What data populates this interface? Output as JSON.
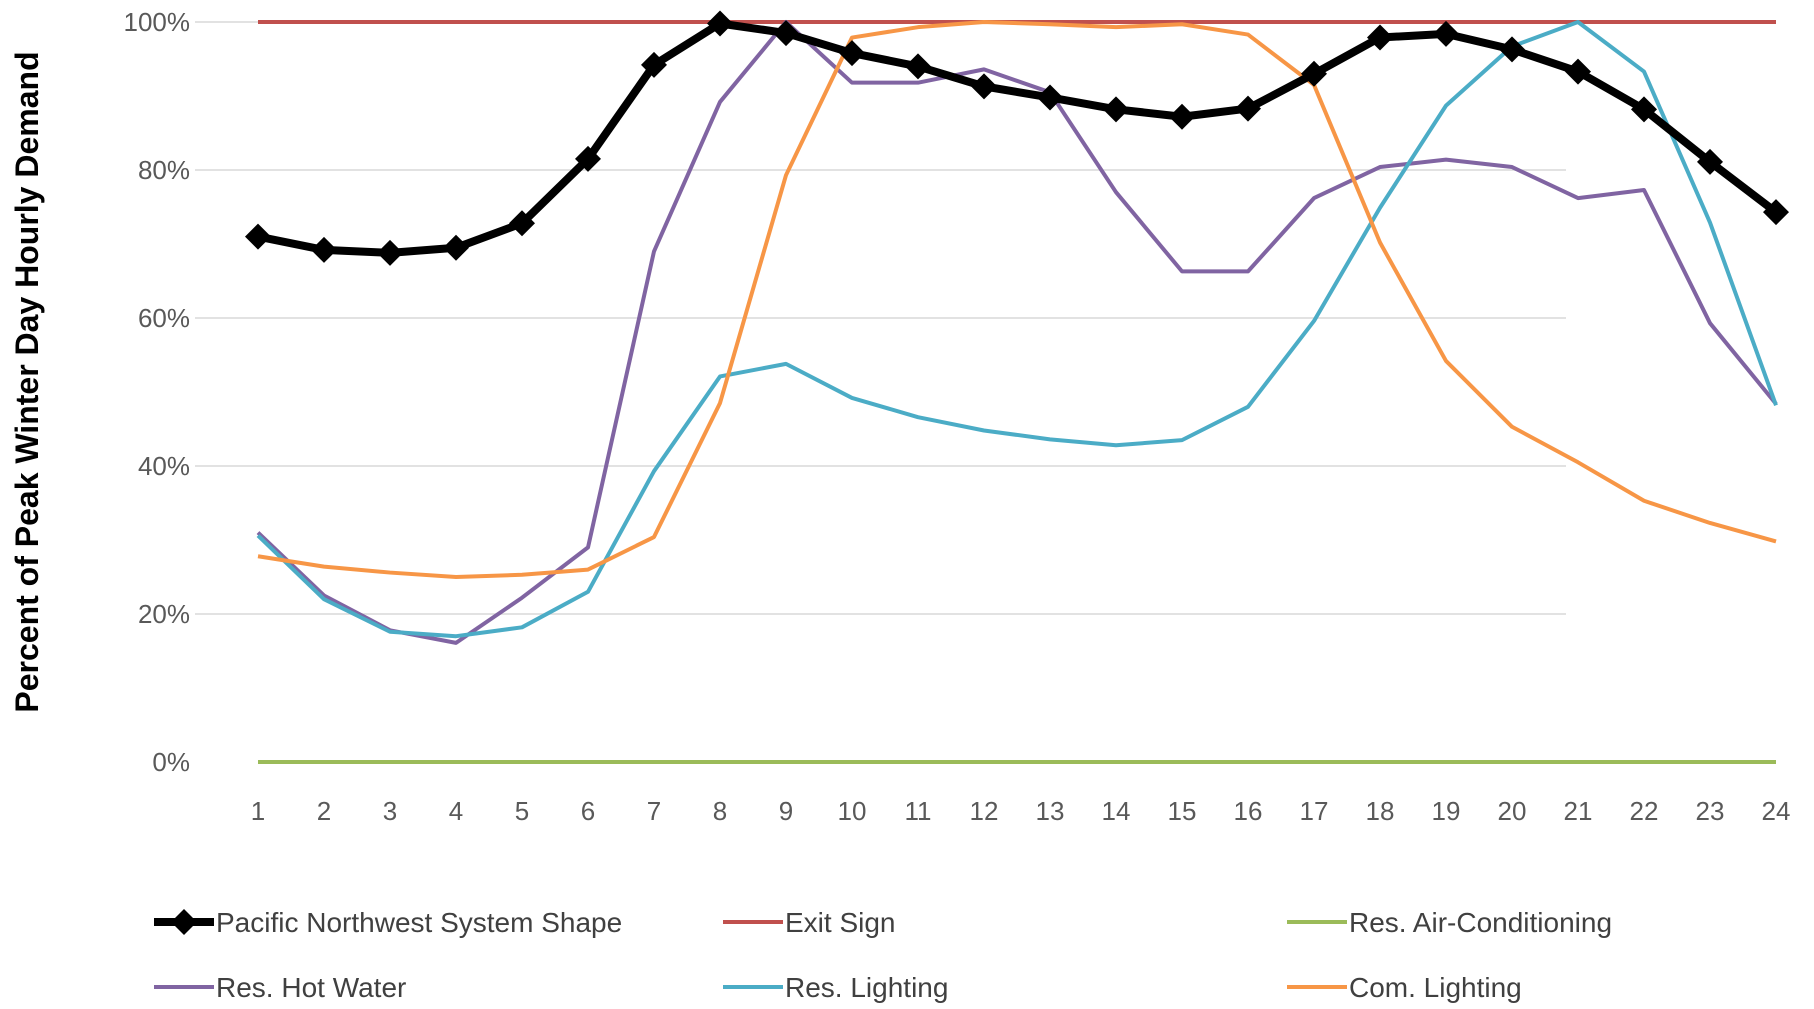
{
  "chart_data": {
    "type": "line",
    "title": "",
    "xlabel": "",
    "ylabel": "Percent of Peak Winter Day Hourly Demand",
    "x": [
      1,
      2,
      3,
      4,
      5,
      6,
      7,
      8,
      9,
      10,
      11,
      12,
      13,
      14,
      15,
      16,
      17,
      18,
      19,
      20,
      21,
      22,
      23,
      24
    ],
    "ylim": [
      0,
      100
    ],
    "yticks": [
      0,
      20,
      40,
      60,
      80,
      100
    ],
    "ytick_labels": [
      "0%",
      "20%",
      "40%",
      "60%",
      "80%",
      "100%"
    ],
    "grid": "horizontal",
    "legend_position": "bottom",
    "series": [
      {
        "name": "Pacific Northwest System Shape",
        "color": "#000000",
        "marker": "diamond",
        "values": [
          71,
          69.2,
          68.8,
          69.5,
          72.8,
          81.5,
          94.2,
          99.8,
          98.5,
          95.8,
          94.0,
          91.3,
          89.8,
          88.2,
          87.2,
          88.3,
          93.0,
          97.9,
          98.4,
          96.3,
          93.3,
          88.2,
          81.1,
          74.3
        ]
      },
      {
        "name": "Exit Sign",
        "color": "#C0504D",
        "values": [
          100,
          100,
          100,
          100,
          100,
          100,
          100,
          100,
          100,
          100,
          100,
          100,
          100,
          100,
          100,
          100,
          100,
          100,
          100,
          100,
          100,
          100,
          100,
          100
        ]
      },
      {
        "name": "Res. Air-Conditioning",
        "color": "#9BBB59",
        "values": [
          0,
          0,
          0,
          0,
          0,
          0,
          0,
          0,
          0,
          0,
          0,
          0,
          0,
          0,
          0,
          0,
          0,
          0,
          0,
          0,
          0,
          0,
          0,
          0
        ]
      },
      {
        "name": "Res. Hot Water",
        "color": "#8064A2",
        "values": [
          31.0,
          22.5,
          17.8,
          16.1,
          22.2,
          29.0,
          69.0,
          89.2,
          100.0,
          91.8,
          91.8,
          93.6,
          90.5,
          77.0,
          66.3,
          66.3,
          76.2,
          80.4,
          81.4,
          80.4,
          76.2,
          77.3,
          59.3,
          48.4
        ]
      },
      {
        "name": "Res. Lighting",
        "color": "#4BACC6",
        "values": [
          30.6,
          22.0,
          17.6,
          17.0,
          18.2,
          23.0,
          39.3,
          52.1,
          53.8,
          49.2,
          46.6,
          44.8,
          43.6,
          42.8,
          43.5,
          48.0,
          59.6,
          74.9,
          88.7,
          96.7,
          100.0,
          93.3,
          72.9,
          48.2
        ]
      },
      {
        "name": "Com. Lighting",
        "color": "#F79646",
        "values": [
          27.8,
          26.4,
          25.6,
          25.0,
          25.3,
          26.0,
          30.4,
          48.5,
          79.3,
          97.9,
          99.3,
          100.0,
          99.7,
          99.3,
          99.7,
          98.3,
          91.5,
          70.2,
          54.2,
          45.3,
          40.5,
          35.3,
          32.3,
          29.8
        ]
      }
    ]
  }
}
